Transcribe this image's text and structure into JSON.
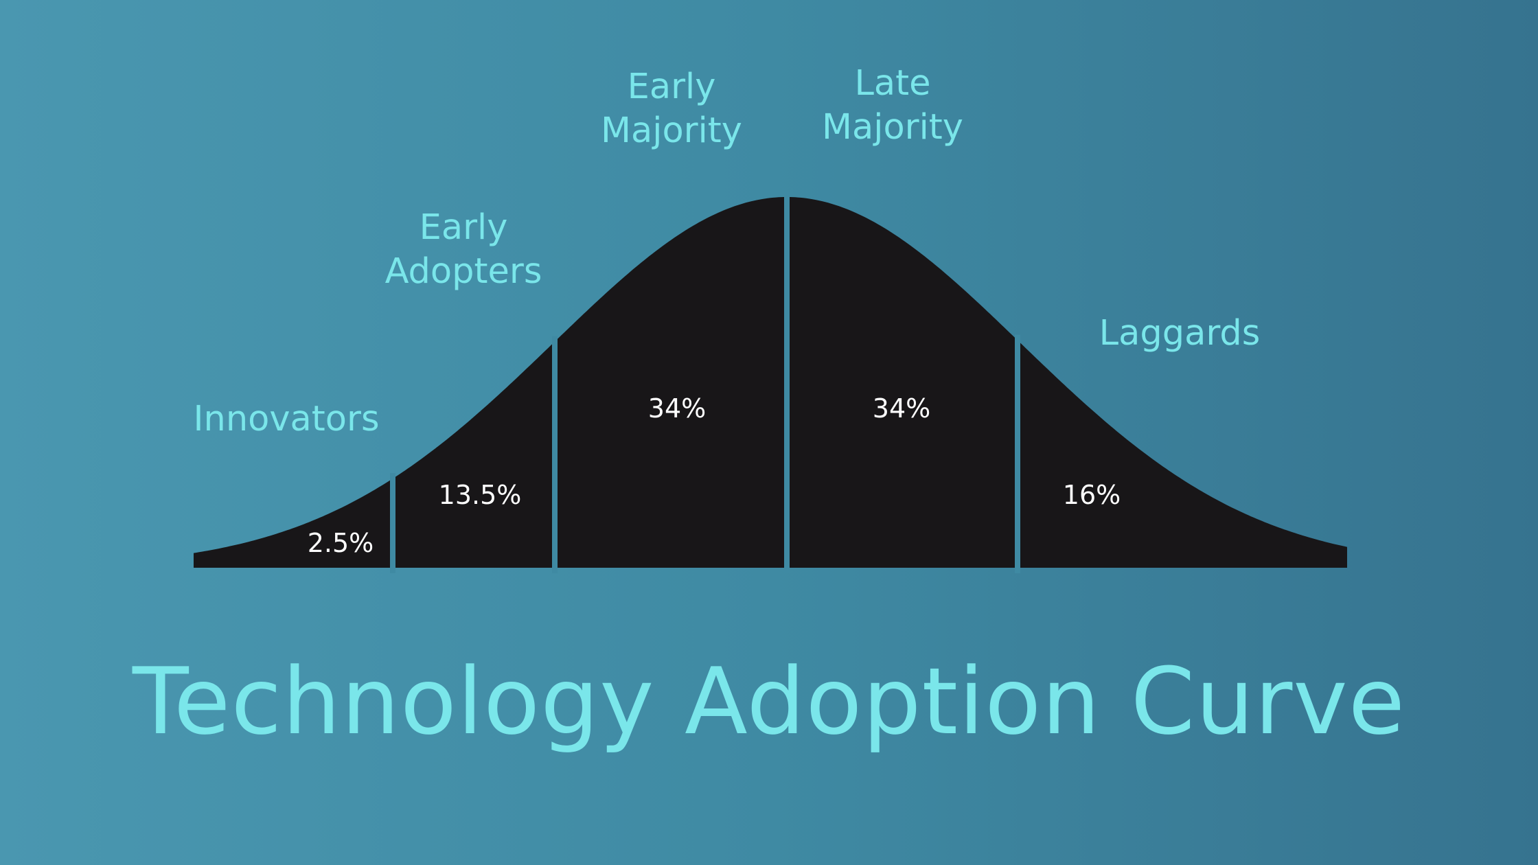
{
  "title": "Technology Adoption Curve",
  "colors": {
    "curve_fill": "#181618",
    "divider": "#3f8aa3",
    "label": "#7ae6ea",
    "percent": "#ffffff"
  },
  "chart_data": {
    "type": "area",
    "title": "Technology Adoption Curve",
    "distribution": "bell-curve",
    "segments": [
      {
        "name": "Innovators",
        "label_lines": [
          "Innovators"
        ],
        "value": 2.5,
        "value_label": "2.5%"
      },
      {
        "name": "Early Adopters",
        "label_lines": [
          "Early",
          "Adopters"
        ],
        "value": 13.5,
        "value_label": "13.5%"
      },
      {
        "name": "Early Majority",
        "label_lines": [
          "Early",
          "Majority"
        ],
        "value": 34,
        "value_label": "34%"
      },
      {
        "name": "Late Majority",
        "label_lines": [
          "Late",
          "Majority"
        ],
        "value": 34,
        "value_label": "34%"
      },
      {
        "name": "Laggards",
        "label_lines": [
          "Laggards"
        ],
        "value": 16,
        "value_label": "16%"
      }
    ]
  }
}
